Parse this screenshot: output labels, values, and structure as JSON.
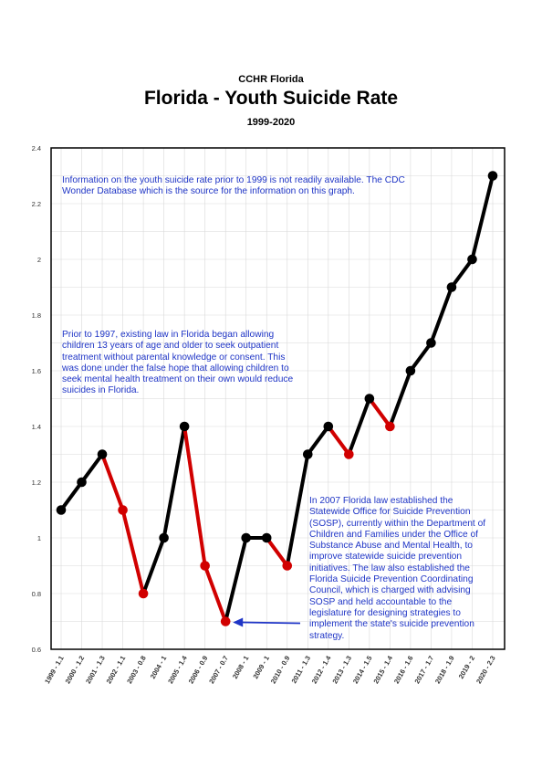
{
  "header": {
    "org": "CCHR Florida",
    "title": "Florida - Youth Suicide Rate",
    "subtitle": "1999-2020"
  },
  "notes": {
    "prior_1999": "Information on the youth suicide rate prior to 1999 is not readily available. The CDC Wonder Database which is the source for the information on this graph.",
    "prior_1997": "Prior to 1997, existing law in Florida began allowing children 13 years of age and older to seek outpatient treatment without parental knowledge or consent. This was done under the false hope that allowing children to seek mental health treatment on their own would reduce suicides in Florida.",
    "sosp_2007": "In 2007 Florida law established the Statewide Office for Suicide Prevention (SOSP), currently within the Department of Children and Families under the Office of Substance Abuse and Mental Health, to improve statewide suicide prevention initiatives. The law also established the Florida Suicide Prevention Coordinating Council, which is charged with advising SOSP and held accountable to the legislature for designing strategies to implement the state's suicide prevention strategy."
  },
  "colors": {
    "increase": "#000000",
    "decrease": "#d10000",
    "annotation": "#1f35c6",
    "grid": "#d9d9d9"
  },
  "chart_data": {
    "type": "line",
    "title": "Florida - Youth Suicide Rate",
    "categories": [
      "1999 - 1.1",
      "2000 - 1.2",
      "2001 - 1.3",
      "2002 - 1.1",
      "2003 - 0.8",
      "2004 - 1",
      "2005 - 1.4",
      "2006 - 0.9",
      "2007 - 0.7",
      "2008 - 1",
      "2009 - 1",
      "2010 - 0.9",
      "2011 - 1.3",
      "2012 - 1.4",
      "2013 - 1.3",
      "2014 - 1.5",
      "2015 - 1.4",
      "2016 - 1.6",
      "2017 - 1.7",
      "2018 - 1.9",
      "2019 - 2",
      "2020 - 2.3"
    ],
    "x": [
      1999,
      2000,
      2001,
      2002,
      2003,
      2004,
      2005,
      2006,
      2007,
      2008,
      2009,
      2010,
      2011,
      2012,
      2013,
      2014,
      2015,
      2016,
      2017,
      2018,
      2019,
      2020
    ],
    "values": [
      1.1,
      1.2,
      1.3,
      1.1,
      0.8,
      1.0,
      1.4,
      0.9,
      0.7,
      1.0,
      1.0,
      0.9,
      1.3,
      1.4,
      1.3,
      1.5,
      1.4,
      1.6,
      1.7,
      1.9,
      2.0,
      2.3
    ],
    "ylim": [
      0.6,
      2.4
    ],
    "yticks": [
      "0.6",
      "0.8",
      "1",
      "1.2",
      "1.4",
      "1.6",
      "1.8",
      "2",
      "2.2",
      "2.4"
    ],
    "grid": true,
    "legend": "none",
    "segment_coloring": "black where the rate rises or holds, red where it falls",
    "annotations": [
      "arrow pointing to 2007 - 0.7"
    ]
  }
}
